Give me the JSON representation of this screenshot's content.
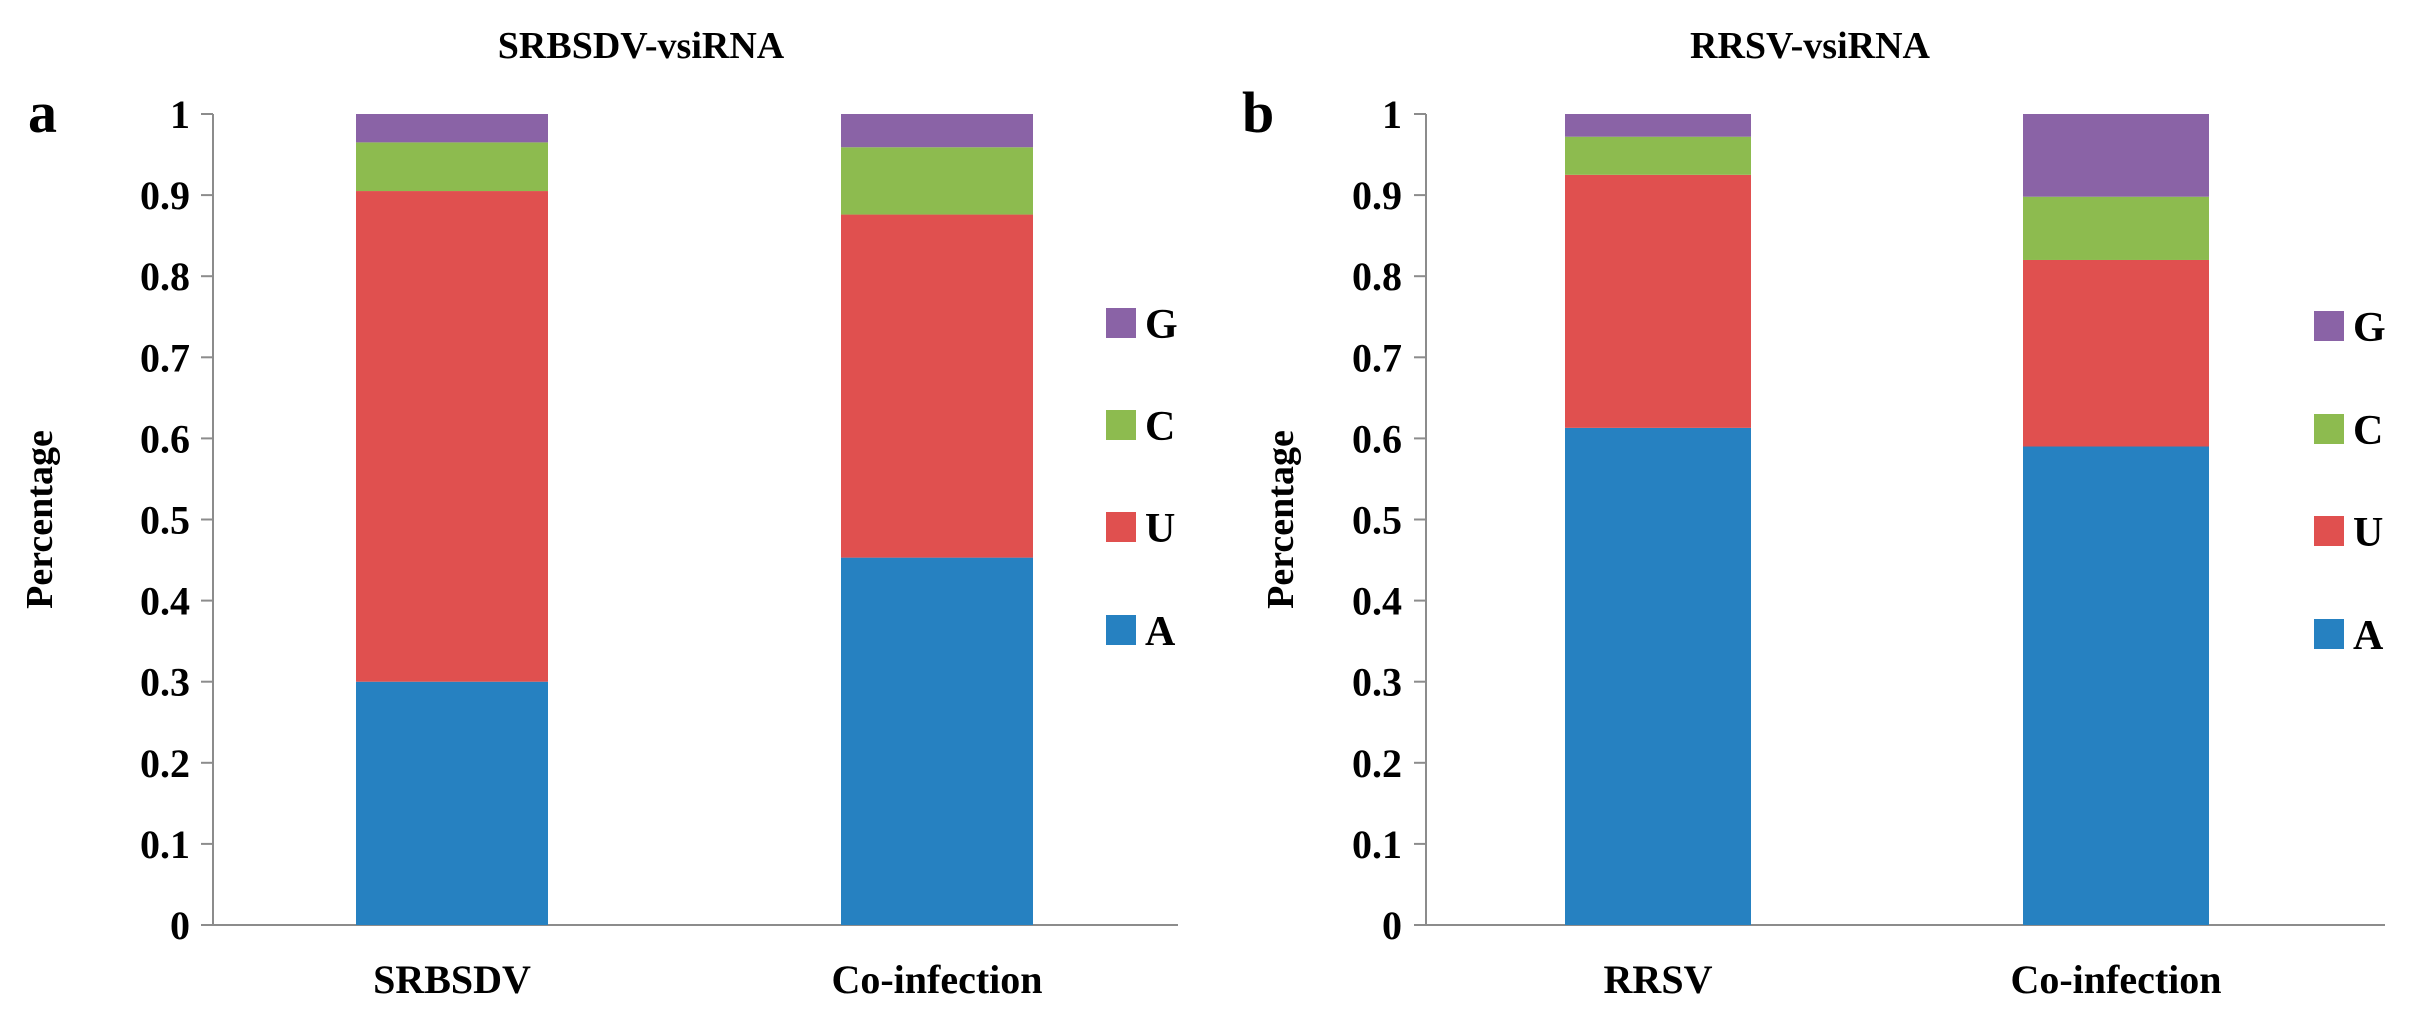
{
  "chart_data": [
    {
      "panel_label": "a",
      "type": "bar",
      "stacked": true,
      "title": "SRBSDV-vsiRNA",
      "xlabel": "",
      "ylabel": "Percentage",
      "ylim": [
        0,
        1
      ],
      "yticks": [
        "0",
        "0.1",
        "0.2",
        "0.3",
        "0.4",
        "0.5",
        "0.6",
        "0.7",
        "0.8",
        "0.9",
        "1"
      ],
      "categories": [
        "SRBSDV",
        "Co-infection"
      ],
      "series": [
        {
          "name": "A",
          "color": "#2681C1",
          "values": [
            0.3,
            0.453
          ]
        },
        {
          "name": "U",
          "color": "#E0504F",
          "values": [
            0.605,
            0.423
          ]
        },
        {
          "name": "C",
          "color": "#8DBB4F",
          "values": [
            0.06,
            0.083
          ]
        },
        {
          "name": "G",
          "color": "#8A63A6",
          "values": [
            0.035,
            0.041
          ]
        }
      ],
      "legend_order": [
        "G",
        "C",
        "U",
        "A"
      ],
      "legend_position": "right"
    },
    {
      "panel_label": "b",
      "type": "bar",
      "stacked": true,
      "title": "RRSV-vsiRNA",
      "xlabel": "",
      "ylabel": "Percentage",
      "ylim": [
        0,
        1
      ],
      "yticks": [
        "0",
        "0.1",
        "0.2",
        "0.3",
        "0.4",
        "0.5",
        "0.6",
        "0.7",
        "0.8",
        "0.9",
        "1"
      ],
      "categories": [
        "RRSV",
        "Co-infection"
      ],
      "series": [
        {
          "name": "A",
          "color": "#2681C1",
          "values": [
            0.613,
            0.59
          ]
        },
        {
          "name": "U",
          "color": "#E0504F",
          "values": [
            0.312,
            0.23
          ]
        },
        {
          "name": "C",
          "color": "#8DBB4F",
          "values": [
            0.047,
            0.078
          ]
        },
        {
          "name": "G",
          "color": "#8A63A6",
          "values": [
            0.028,
            0.102
          ]
        }
      ],
      "legend_order": [
        "G",
        "C",
        "U",
        "A"
      ],
      "legend_position": "right"
    }
  ]
}
